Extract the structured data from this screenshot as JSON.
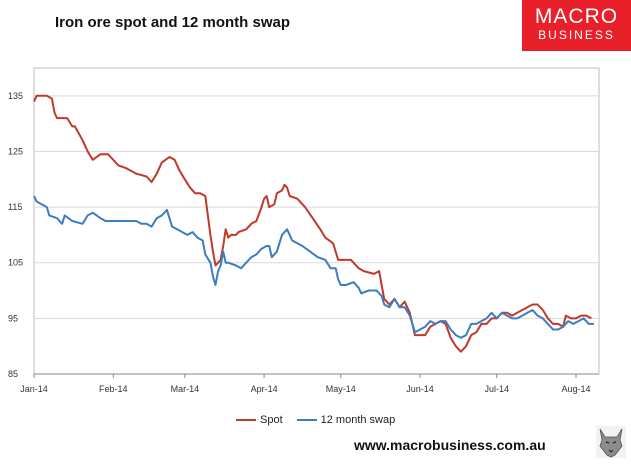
{
  "header": {
    "title": "Iron ore spot and 12 month swap"
  },
  "logo": {
    "line1": "MACRO",
    "line2": "BUSINESS",
    "color": "#e8202a"
  },
  "footer": {
    "url": "www.macrobusiness.com.au"
  },
  "colors": {
    "spot": "#c0392b",
    "swap": "#3e7cc1",
    "grid": "#d9d9d9",
    "axis": "#bfbfbf"
  },
  "chart_data": {
    "type": "line",
    "title": "Iron ore spot and 12 month swap",
    "xlabel": "",
    "ylabel": "",
    "ylim": [
      85,
      140
    ],
    "yticks": [
      85,
      95,
      105,
      115,
      125,
      135
    ],
    "xlim": [
      "2014-01-01",
      "2014-08-10"
    ],
    "xticks": [
      {
        "label": "Jan-14",
        "date": "2014-01-01"
      },
      {
        "label": "Feb-14",
        "date": "2014-02-01"
      },
      {
        "label": "Mar-14",
        "date": "2014-03-01"
      },
      {
        "label": "Apr-14",
        "date": "2014-04-01"
      },
      {
        "label": "May-14",
        "date": "2014-05-01"
      },
      {
        "label": "Jun-14",
        "date": "2014-06-01"
      },
      {
        "label": "Jul-14",
        "date": "2014-07-01"
      },
      {
        "label": "Aug-14",
        "date": "2014-08-01"
      }
    ],
    "grid": "horizontal",
    "legend": "bottom",
    "series": [
      {
        "name": "Spot",
        "color": "#c0392b",
        "points": [
          [
            "2014-01-01",
            134
          ],
          [
            "2014-01-02",
            135
          ],
          [
            "2014-01-06",
            135
          ],
          [
            "2014-01-08",
            134.5
          ],
          [
            "2014-01-09",
            132
          ],
          [
            "2014-01-10",
            131
          ],
          [
            "2014-01-14",
            131
          ],
          [
            "2014-01-16",
            129.5
          ],
          [
            "2014-01-17",
            129.5
          ],
          [
            "2014-01-20",
            127
          ],
          [
            "2014-01-22",
            125
          ],
          [
            "2014-01-24",
            123.5
          ],
          [
            "2014-01-27",
            124.5
          ],
          [
            "2014-01-30",
            124.5
          ],
          [
            "2014-01-31",
            124
          ],
          [
            "2014-02-03",
            122.5
          ],
          [
            "2014-02-06",
            122
          ],
          [
            "2014-02-10",
            121
          ],
          [
            "2014-02-14",
            120.5
          ],
          [
            "2014-02-16",
            119.5
          ],
          [
            "2014-02-18",
            121
          ],
          [
            "2014-02-20",
            123
          ],
          [
            "2014-02-23",
            124
          ],
          [
            "2014-02-25",
            123.5
          ],
          [
            "2014-02-27",
            121.5
          ],
          [
            "2014-03-01",
            120
          ],
          [
            "2014-03-03",
            118.5
          ],
          [
            "2014-03-05",
            117.5
          ],
          [
            "2014-03-07",
            117.5
          ],
          [
            "2014-03-09",
            117
          ],
          [
            "2014-03-11",
            110
          ],
          [
            "2014-03-12",
            107
          ],
          [
            "2014-03-13",
            104.5
          ],
          [
            "2014-03-15",
            105.5
          ],
          [
            "2014-03-16",
            108
          ],
          [
            "2014-03-17",
            111
          ],
          [
            "2014-03-18",
            109.5
          ],
          [
            "2014-03-19",
            110
          ],
          [
            "2014-03-21",
            110
          ],
          [
            "2014-03-22",
            110.5
          ],
          [
            "2014-03-25",
            111
          ],
          [
            "2014-03-27",
            112
          ],
          [
            "2014-03-29",
            112.5
          ],
          [
            "2014-03-31",
            115
          ],
          [
            "2014-04-01",
            116.5
          ],
          [
            "2014-04-02",
            117
          ],
          [
            "2014-04-03",
            115
          ],
          [
            "2014-04-05",
            115.5
          ],
          [
            "2014-04-06",
            117.5
          ],
          [
            "2014-04-08",
            118
          ],
          [
            "2014-04-09",
            119
          ],
          [
            "2014-04-10",
            118.5
          ],
          [
            "2014-04-11",
            117
          ],
          [
            "2014-04-14",
            116.5
          ],
          [
            "2014-04-17",
            115
          ],
          [
            "2014-04-20",
            113
          ],
          [
            "2014-04-23",
            111
          ],
          [
            "2014-04-25",
            109.5
          ],
          [
            "2014-04-28",
            108.5
          ],
          [
            "2014-04-30",
            105.5
          ],
          [
            "2014-05-01",
            105.5
          ],
          [
            "2014-05-05",
            105.5
          ],
          [
            "2014-05-08",
            104
          ],
          [
            "2014-05-10",
            103.5
          ],
          [
            "2014-05-14",
            103
          ],
          [
            "2014-05-16",
            103.5
          ],
          [
            "2014-05-18",
            98.5
          ],
          [
            "2014-05-20",
            97.5
          ],
          [
            "2014-05-22",
            98.5
          ],
          [
            "2014-05-24",
            97
          ],
          [
            "2014-05-26",
            98
          ],
          [
            "2014-05-28",
            96
          ],
          [
            "2014-05-30",
            92
          ],
          [
            "2014-06-03",
            92
          ],
          [
            "2014-06-05",
            93.5
          ],
          [
            "2014-06-07",
            94
          ],
          [
            "2014-06-09",
            94.5
          ],
          [
            "2014-06-11",
            94
          ],
          [
            "2014-06-13",
            91.5
          ],
          [
            "2014-06-15",
            90
          ],
          [
            "2014-06-17",
            89
          ],
          [
            "2014-06-19",
            90
          ],
          [
            "2014-06-21",
            92
          ],
          [
            "2014-06-23",
            92.5
          ],
          [
            "2014-06-25",
            94
          ],
          [
            "2014-06-27",
            94
          ],
          [
            "2014-06-29",
            95
          ],
          [
            "2014-07-01",
            95
          ],
          [
            "2014-07-03",
            96
          ],
          [
            "2014-07-05",
            96
          ],
          [
            "2014-07-07",
            95.5
          ],
          [
            "2014-07-09",
            96
          ],
          [
            "2014-07-11",
            96.5
          ],
          [
            "2014-07-13",
            97
          ],
          [
            "2014-07-15",
            97.5
          ],
          [
            "2014-07-17",
            97.5
          ],
          [
            "2014-07-19",
            96.5
          ],
          [
            "2014-07-21",
            95
          ],
          [
            "2014-07-23",
            94
          ],
          [
            "2014-07-25",
            94
          ],
          [
            "2014-07-27",
            93.5
          ],
          [
            "2014-07-28",
            95.5
          ],
          [
            "2014-07-30",
            95
          ],
          [
            "2014-08-01",
            95
          ],
          [
            "2014-08-03",
            95.5
          ],
          [
            "2014-08-05",
            95.5
          ],
          [
            "2014-08-07",
            95
          ]
        ]
      },
      {
        "name": "12 month swap",
        "color": "#3e7cc1",
        "points": [
          [
            "2014-01-01",
            117
          ],
          [
            "2014-01-02",
            116
          ],
          [
            "2014-01-06",
            115
          ],
          [
            "2014-01-07",
            113.5
          ],
          [
            "2014-01-10",
            113
          ],
          [
            "2014-01-12",
            112
          ],
          [
            "2014-01-13",
            113.5
          ],
          [
            "2014-01-16",
            112.5
          ],
          [
            "2014-01-20",
            112
          ],
          [
            "2014-01-22",
            113.5
          ],
          [
            "2014-01-24",
            114
          ],
          [
            "2014-01-27",
            113
          ],
          [
            "2014-01-29",
            112.5
          ],
          [
            "2014-02-03",
            112.5
          ],
          [
            "2014-02-10",
            112.5
          ],
          [
            "2014-02-12",
            112
          ],
          [
            "2014-02-14",
            112
          ],
          [
            "2014-02-16",
            111.5
          ],
          [
            "2014-02-18",
            113
          ],
          [
            "2014-02-20",
            113.5
          ],
          [
            "2014-02-22",
            114.5
          ],
          [
            "2014-02-24",
            111.5
          ],
          [
            "2014-02-26",
            111
          ],
          [
            "2014-02-28",
            110.5
          ],
          [
            "2014-03-02",
            110
          ],
          [
            "2014-03-04",
            110.5
          ],
          [
            "2014-03-06",
            109.5
          ],
          [
            "2014-03-08",
            109
          ],
          [
            "2014-03-09",
            106.5
          ],
          [
            "2014-03-11",
            105
          ],
          [
            "2014-03-12",
            102.5
          ],
          [
            "2014-03-13",
            101
          ],
          [
            "2014-03-14",
            103.5
          ],
          [
            "2014-03-15",
            104.5
          ],
          [
            "2014-03-16",
            107
          ],
          [
            "2014-03-17",
            105
          ],
          [
            "2014-03-18",
            105
          ],
          [
            "2014-03-21",
            104.5
          ],
          [
            "2014-03-23",
            104
          ],
          [
            "2014-03-25",
            105
          ],
          [
            "2014-03-27",
            106
          ],
          [
            "2014-03-29",
            106.5
          ],
          [
            "2014-03-31",
            107.5
          ],
          [
            "2014-04-02",
            108
          ],
          [
            "2014-04-03",
            108
          ],
          [
            "2014-04-04",
            106
          ],
          [
            "2014-04-06",
            107
          ],
          [
            "2014-04-08",
            110
          ],
          [
            "2014-04-10",
            111
          ],
          [
            "2014-04-12",
            109
          ],
          [
            "2014-04-14",
            108.5
          ],
          [
            "2014-04-16",
            108
          ],
          [
            "2014-04-19",
            107
          ],
          [
            "2014-04-22",
            106
          ],
          [
            "2014-04-25",
            105.5
          ],
          [
            "2014-04-27",
            104
          ],
          [
            "2014-04-29",
            104
          ],
          [
            "2014-04-30",
            102
          ],
          [
            "2014-05-01",
            101
          ],
          [
            "2014-05-03",
            101
          ],
          [
            "2014-05-06",
            101.5
          ],
          [
            "2014-05-08",
            100.5
          ],
          [
            "2014-05-09",
            99.5
          ],
          [
            "2014-05-12",
            100
          ],
          [
            "2014-05-15",
            100
          ],
          [
            "2014-05-17",
            99
          ],
          [
            "2014-05-18",
            97.5
          ],
          [
            "2014-05-20",
            97
          ],
          [
            "2014-05-22",
            98.5
          ],
          [
            "2014-05-24",
            97
          ],
          [
            "2014-05-26",
            97
          ],
          [
            "2014-05-28",
            95.5
          ],
          [
            "2014-05-30",
            92.5
          ],
          [
            "2014-06-03",
            93.5
          ],
          [
            "2014-06-05",
            94.5
          ],
          [
            "2014-06-07",
            94
          ],
          [
            "2014-06-09",
            94.5
          ],
          [
            "2014-06-11",
            94.5
          ],
          [
            "2014-06-13",
            93
          ],
          [
            "2014-06-15",
            92
          ],
          [
            "2014-06-17",
            91.5
          ],
          [
            "2014-06-19",
            92
          ],
          [
            "2014-06-21",
            94
          ],
          [
            "2014-06-23",
            94
          ],
          [
            "2014-06-25",
            94.5
          ],
          [
            "2014-06-27",
            95
          ],
          [
            "2014-06-29",
            96
          ],
          [
            "2014-07-01",
            95
          ],
          [
            "2014-07-03",
            96
          ],
          [
            "2014-07-05",
            95.5
          ],
          [
            "2014-07-07",
            95
          ],
          [
            "2014-07-09",
            95
          ],
          [
            "2014-07-11",
            95.5
          ],
          [
            "2014-07-13",
            96
          ],
          [
            "2014-07-15",
            96.5
          ],
          [
            "2014-07-17",
            95.5
          ],
          [
            "2014-07-19",
            95
          ],
          [
            "2014-07-21",
            94
          ],
          [
            "2014-07-23",
            93
          ],
          [
            "2014-07-25",
            93
          ],
          [
            "2014-07-27",
            93.5
          ],
          [
            "2014-07-29",
            94.5
          ],
          [
            "2014-07-31",
            94
          ],
          [
            "2014-08-02",
            94.5
          ],
          [
            "2014-08-04",
            95
          ],
          [
            "2014-08-06",
            94
          ],
          [
            "2014-08-08",
            94
          ]
        ]
      }
    ]
  }
}
